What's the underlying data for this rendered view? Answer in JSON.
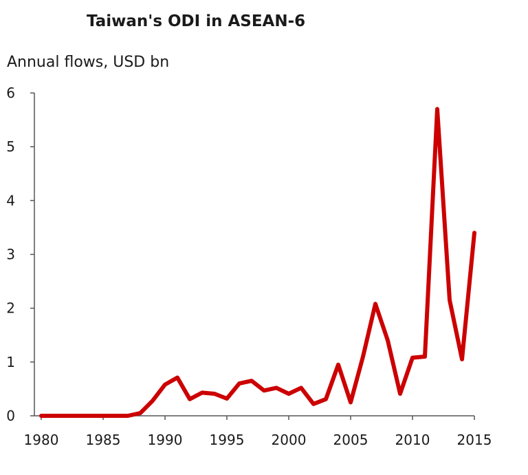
{
  "chart_data": {
    "type": "line",
    "title": "Taiwan's ODI in ASEAN-6",
    "subtitle": "Annual flows, USD bn",
    "xlabel": "",
    "ylabel": "",
    "xlim": [
      1980,
      2015
    ],
    "ylim": [
      0,
      6
    ],
    "x_ticks": [
      1980,
      1985,
      1990,
      1995,
      2000,
      2005,
      2010,
      2015
    ],
    "y_ticks": [
      0,
      1,
      2,
      3,
      4,
      5,
      6
    ],
    "grid": false,
    "series": [
      {
        "color": "#cc0000",
        "x": [
          1980,
          1981,
          1982,
          1983,
          1984,
          1985,
          1986,
          1987,
          1988,
          1989,
          1990,
          1991,
          1992,
          1993,
          1994,
          1995,
          1996,
          1997,
          1998,
          1999,
          2000,
          2001,
          2002,
          2003,
          2004,
          2005,
          2006,
          2007,
          2008,
          2009,
          2010,
          2011,
          2012,
          2013,
          2014,
          2015
        ],
        "values": [
          0,
          0,
          0,
          0,
          0,
          0,
          0,
          0,
          0.05,
          0.28,
          0.58,
          0.71,
          0.31,
          0.43,
          0.41,
          0.32,
          0.6,
          0.65,
          0.47,
          0.52,
          0.41,
          0.52,
          0.22,
          0.31,
          0.95,
          0.25,
          1.1,
          2.08,
          1.4,
          0.41,
          1.08,
          1.1,
          5.7,
          2.15,
          1.05,
          3.4
        ]
      }
    ]
  }
}
